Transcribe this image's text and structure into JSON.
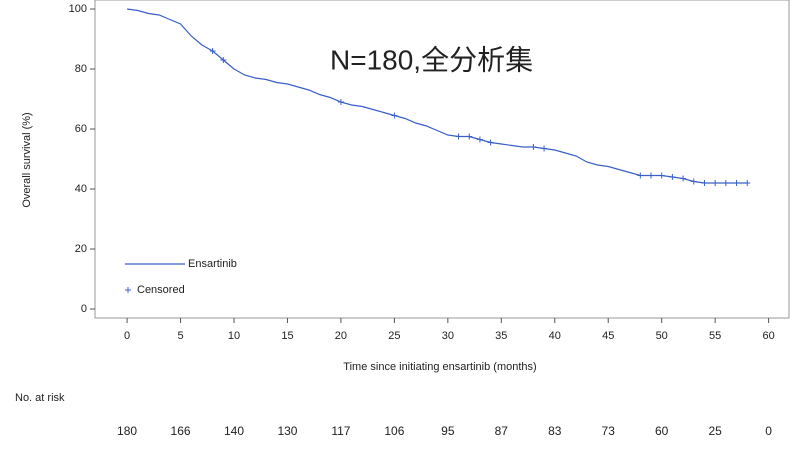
{
  "chart_data": {
    "type": "line",
    "annotation": "N=180,全分析集",
    "xlabel": "Time since initiating ensartinib (months)",
    "ylabel": "Overall survival (%)",
    "xlim": [
      -3,
      62
    ],
    "ylim": [
      -3,
      103
    ],
    "xticks": [
      0,
      5,
      10,
      15,
      20,
      25,
      30,
      35,
      40,
      45,
      50,
      55,
      60
    ],
    "yticks": [
      0,
      20,
      40,
      60,
      80,
      100
    ],
    "legend": "lower left",
    "series": [
      {
        "name": "Ensartinib",
        "color": "#3a5fc8",
        "x": [
          0,
          1,
          2,
          3,
          4,
          5,
          6,
          7,
          8,
          9,
          10,
          11,
          12,
          13,
          14,
          15,
          16,
          17,
          18,
          19,
          20,
          21,
          22,
          23,
          24,
          25,
          26,
          27,
          28,
          29,
          30,
          31,
          32,
          33,
          34,
          35,
          36,
          37,
          38,
          39,
          40,
          41,
          42,
          43,
          44,
          45,
          46,
          47,
          48,
          49,
          50,
          51,
          52,
          53,
          54,
          55,
          56,
          57,
          58
        ],
        "values": [
          100,
          99.5,
          98.5,
          98,
          96.5,
          95,
          91,
          88,
          86,
          83,
          80,
          78,
          77,
          76.5,
          75.5,
          75,
          74,
          73,
          71.5,
          70.5,
          69,
          68,
          67.5,
          66.5,
          65.5,
          64.5,
          63.5,
          62,
          61,
          59.5,
          58,
          57.5,
          57.5,
          56.5,
          55.5,
          55,
          54.5,
          54,
          54,
          53.5,
          53,
          52,
          51,
          49,
          48,
          47.5,
          46.5,
          45.5,
          44.5,
          44.5,
          44.5,
          44,
          43.5,
          42.5,
          42,
          42,
          42,
          42,
          42
        ]
      }
    ],
    "censored": {
      "name": "Censored",
      "color": "#3a5fc8",
      "x": [
        8,
        9,
        20,
        25,
        31,
        32,
        33,
        34,
        38,
        39,
        48,
        49,
        50,
        51,
        52,
        53,
        54,
        55,
        56,
        57,
        58
      ],
      "values": [
        86,
        83,
        69,
        64.5,
        57.5,
        57.5,
        56.5,
        55.5,
        54,
        53.5,
        44.5,
        44.5,
        44.5,
        44,
        43.5,
        42.5,
        42,
        42,
        42,
        42,
        42
      ]
    },
    "risk_table": {
      "label": "No. at risk",
      "values": [
        "180",
        "166",
        "140",
        "130",
        "117",
        "106",
        "95",
        "87",
        "83",
        "73",
        "60",
        "25",
        "0"
      ]
    }
  }
}
